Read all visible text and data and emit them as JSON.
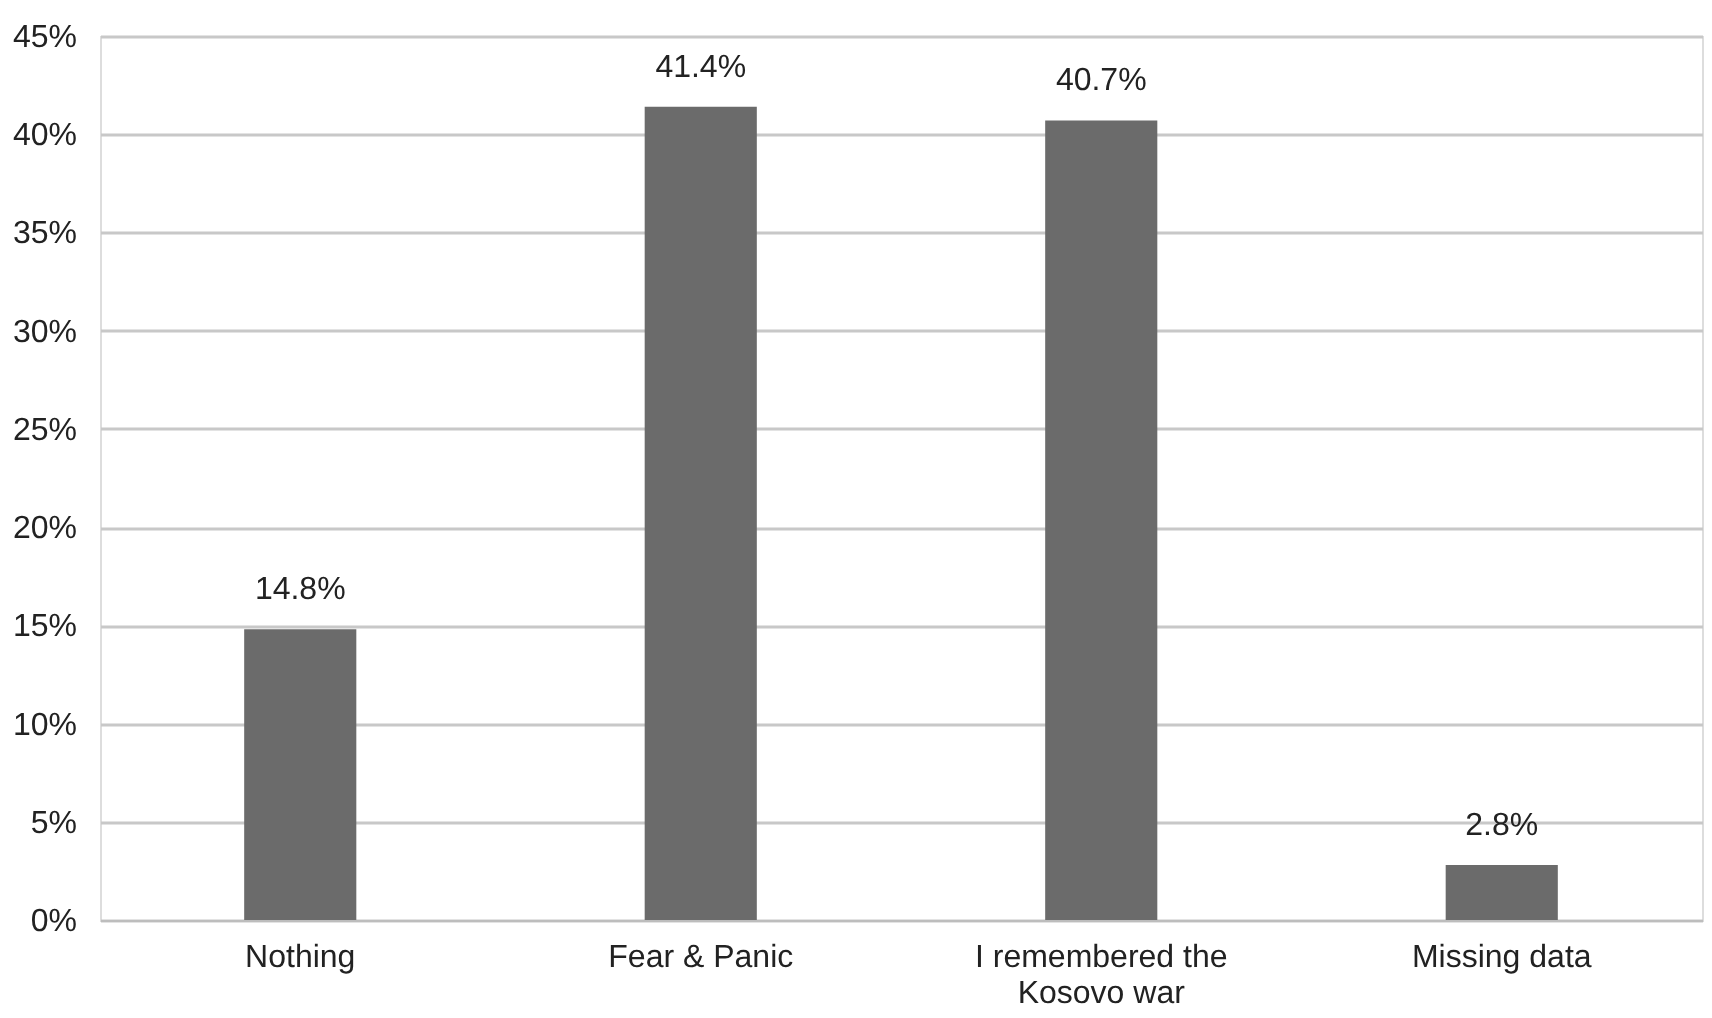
{
  "chart_data": {
    "type": "bar",
    "categories": [
      "Nothing",
      "Fear & Panic",
      "I remembered the Kosovo war",
      "Missing data"
    ],
    "values": [
      14.8,
      41.4,
      40.7,
      2.8
    ],
    "value_labels": [
      "14.8%",
      "41.4%",
      "40.7%",
      "2.8%"
    ],
    "color": "#6b6b6b",
    "ylim": [
      0,
      45
    ],
    "yticks": [
      {
        "value": 0,
        "label": "0%"
      },
      {
        "value": 5,
        "label": "5%"
      },
      {
        "value": 10,
        "label": "10%"
      },
      {
        "value": 15,
        "label": "15%"
      },
      {
        "value": 20,
        "label": "20%"
      },
      {
        "value": 25,
        "label": "25%"
      },
      {
        "value": 30,
        "label": "30%"
      },
      {
        "value": 35,
        "label": "35%"
      },
      {
        "value": 40,
        "label": "40%"
      },
      {
        "value": 45,
        "label": "45%"
      }
    ],
    "grid": "y"
  }
}
